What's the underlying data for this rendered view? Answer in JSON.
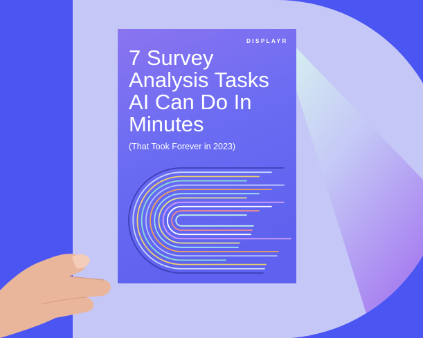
{
  "cover": {
    "logo": "DISPLAYR",
    "title_lines": [
      "7 Survey",
      "Analysis Tasks",
      "AI Can Do In",
      "Minutes"
    ],
    "subtitle": "(That Took Forever in 2023)"
  }
}
